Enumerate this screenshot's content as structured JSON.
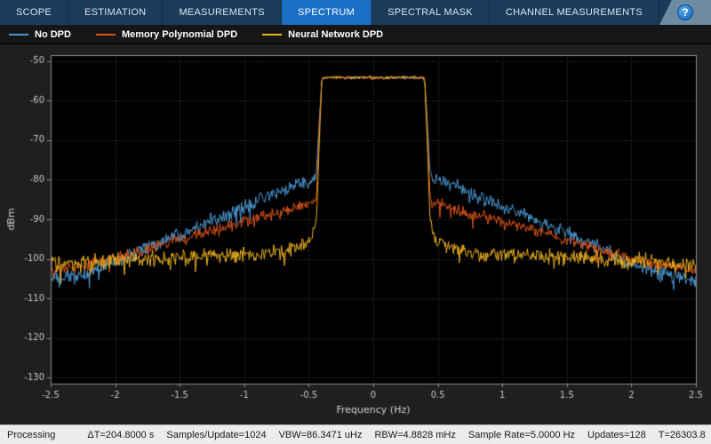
{
  "toolbar": {
    "tabs": [
      {
        "label": "SCOPE"
      },
      {
        "label": "ESTIMATION"
      },
      {
        "label": "MEASUREMENTS"
      },
      {
        "label": "SPECTRUM"
      },
      {
        "label": "SPECTRAL MASK"
      },
      {
        "label": "CHANNEL MEASUREMENTS"
      }
    ],
    "active_tab": "SPECTRUM",
    "active_tab_color": "#1b6fc5",
    "bar_color": "#1c3b5a",
    "help_label": "?"
  },
  "legend": {
    "items": [
      {
        "label": "No DPD",
        "color": "#4a98d2"
      },
      {
        "label": "Memory Polynomial DPD",
        "color": "#d95319"
      },
      {
        "label": "Neural Network DPD",
        "color": "#edb120"
      }
    ]
  },
  "status": {
    "processing": "Processing",
    "items": [
      "ΔT=204.8000 s",
      "Samples/Update=1024",
      "VBW=86.3471 uHz",
      "RBW=4.8828 mHz",
      "Sample Rate=5.0000 Hz",
      "Updates=128",
      "T=26303.8"
    ]
  },
  "chart_data": {
    "type": "line",
    "title": "",
    "xlabel": "Frequency (Hz)",
    "ylabel": "dBm",
    "xlim": [
      -2.5,
      2.5
    ],
    "ylim": [
      -130,
      -50
    ],
    "xticks": [
      -2.5,
      -2,
      -1.5,
      -1,
      -0.5,
      0,
      0.5,
      1,
      1.5,
      2,
      2.5
    ],
    "xtick_labels": [
      "-2.5",
      "-2",
      "-1.5",
      "-1",
      "-0.5",
      "0",
      "0.5",
      "1",
      "1.5",
      "2",
      "2.5"
    ],
    "yticks": [
      -50,
      -60,
      -70,
      -80,
      -90,
      -100,
      -110,
      -120,
      -130
    ],
    "ytick_labels": [
      "-50",
      "-60",
      "-70",
      "-80",
      "-90",
      "-100",
      "-110",
      "-120",
      "-130"
    ],
    "grid": "dotted",
    "plot_bg": "#000000",
    "grid_color": "#3f3f3f",
    "axis_text_color": "#c4c4c4",
    "legend_position": "top-left-strip",
    "series": [
      {
        "name": "No DPD",
        "color": "#4a98d2",
        "noise_out": 2.2,
        "noise_in": 0.5,
        "envelope": [
          [
            -2.5,
            -105
          ],
          [
            -2.25,
            -104
          ],
          [
            -2.0,
            -101
          ],
          [
            -1.75,
            -97
          ],
          [
            -1.5,
            -93.5
          ],
          [
            -1.25,
            -90
          ],
          [
            -1.0,
            -87
          ],
          [
            -0.8,
            -84
          ],
          [
            -0.65,
            -82
          ],
          [
            -0.5,
            -80
          ],
          [
            -0.45,
            -79
          ],
          [
            -0.44,
            -78
          ],
          [
            -0.42,
            -66
          ],
          [
            -0.4,
            -55.5
          ],
          [
            -0.39,
            -54.2
          ],
          [
            0.39,
            -54.2
          ],
          [
            0.4,
            -55.5
          ],
          [
            0.42,
            -66
          ],
          [
            0.44,
            -78
          ],
          [
            0.45,
            -79
          ],
          [
            0.5,
            -80
          ],
          [
            0.65,
            -82
          ],
          [
            0.8,
            -84
          ],
          [
            1.0,
            -87
          ],
          [
            1.25,
            -90
          ],
          [
            1.5,
            -93.5
          ],
          [
            1.75,
            -97
          ],
          [
            2.0,
            -101
          ],
          [
            2.25,
            -104
          ],
          [
            2.5,
            -105.5
          ]
        ]
      },
      {
        "name": "Memory Polynomial DPD",
        "color": "#d95319",
        "noise_out": 1.8,
        "noise_in": 0.5,
        "envelope": [
          [
            -2.5,
            -103
          ],
          [
            -2.25,
            -102
          ],
          [
            -2.0,
            -100
          ],
          [
            -1.75,
            -97.5
          ],
          [
            -1.5,
            -95
          ],
          [
            -1.25,
            -93
          ],
          [
            -1.0,
            -90.5
          ],
          [
            -0.8,
            -89
          ],
          [
            -0.65,
            -87.5
          ],
          [
            -0.5,
            -86
          ],
          [
            -0.45,
            -85.5
          ],
          [
            -0.44,
            -84
          ],
          [
            -0.42,
            -68
          ],
          [
            -0.4,
            -55.5
          ],
          [
            -0.39,
            -54.2
          ],
          [
            0.39,
            -54.2
          ],
          [
            0.4,
            -55.5
          ],
          [
            0.42,
            -68
          ],
          [
            0.44,
            -84
          ],
          [
            0.45,
            -85.5
          ],
          [
            0.5,
            -86
          ],
          [
            0.65,
            -87.5
          ],
          [
            0.8,
            -89
          ],
          [
            1.0,
            -90.5
          ],
          [
            1.25,
            -93
          ],
          [
            1.5,
            -95
          ],
          [
            1.75,
            -97.5
          ],
          [
            2.0,
            -100
          ],
          [
            2.25,
            -102
          ],
          [
            2.5,
            -103
          ]
        ]
      },
      {
        "name": "Neural Network DPD",
        "color": "#edb120",
        "noise_out": 2.4,
        "noise_in": 0.5,
        "envelope": [
          [
            -2.5,
            -101.5
          ],
          [
            -2.0,
            -100.5
          ],
          [
            -1.5,
            -99.5
          ],
          [
            -1.0,
            -99
          ],
          [
            -0.7,
            -98
          ],
          [
            -0.55,
            -96.5
          ],
          [
            -0.48,
            -95
          ],
          [
            -0.44,
            -90
          ],
          [
            -0.42,
            -72
          ],
          [
            -0.4,
            -55.5
          ],
          [
            -0.39,
            -54.2
          ],
          [
            0.39,
            -54.2
          ],
          [
            0.4,
            -55.5
          ],
          [
            0.42,
            -72
          ],
          [
            0.44,
            -90
          ],
          [
            0.48,
            -95
          ],
          [
            0.55,
            -96.5
          ],
          [
            0.7,
            -98
          ],
          [
            1.0,
            -99
          ],
          [
            1.5,
            -99.5
          ],
          [
            2.0,
            -100.5
          ],
          [
            2.5,
            -101.5
          ]
        ]
      }
    ]
  }
}
